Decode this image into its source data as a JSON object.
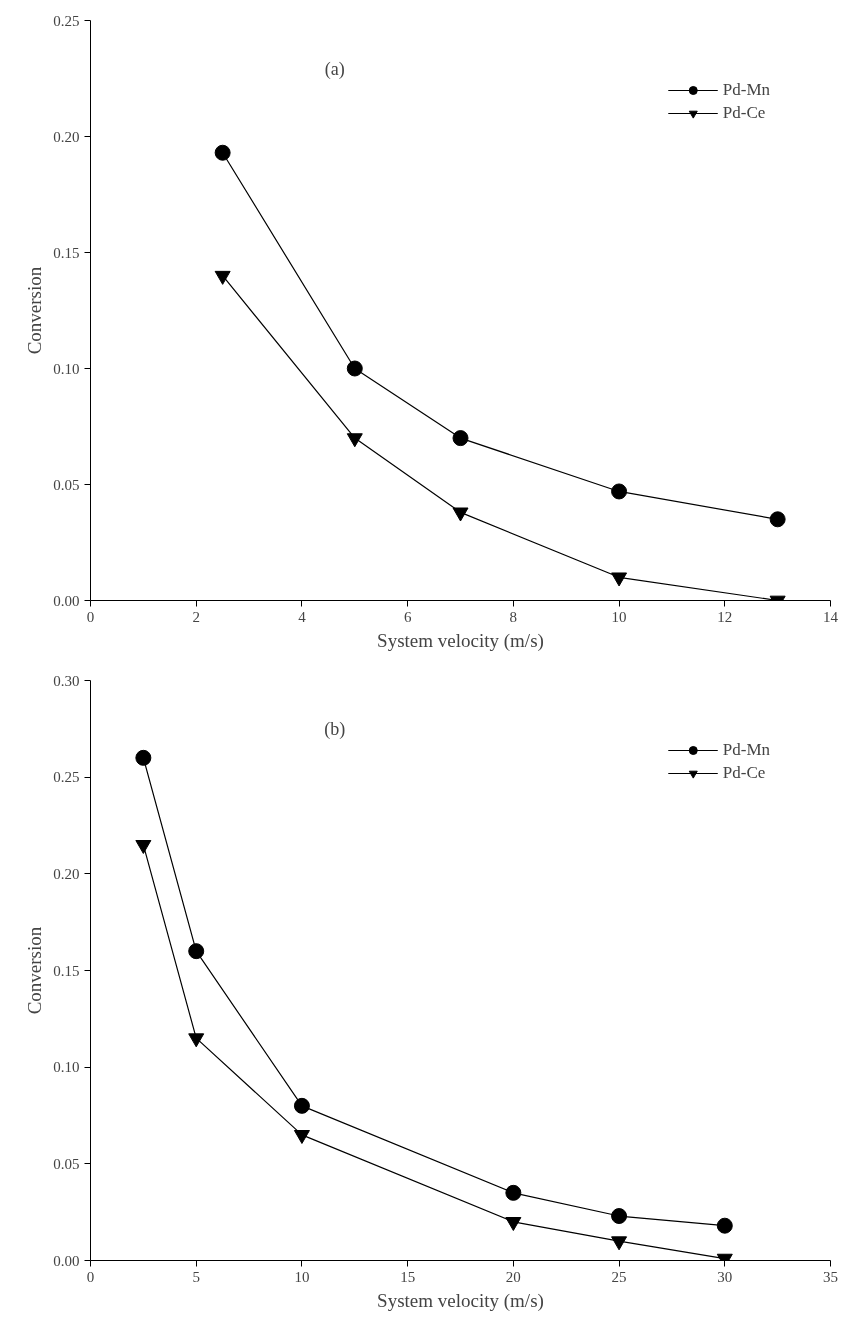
{
  "chart_data": [
    {
      "type": "line",
      "xlabel": "System velocity (m/s)",
      "ylabel": "Conversion",
      "annotations": [
        "(a)"
      ],
      "x": [
        2.5,
        5,
        7,
        10,
        13
      ],
      "series": [
        {
          "name": "Pd-Mn",
          "color": "#000000",
          "marker": "circle",
          "values": [
            0.193,
            0.1,
            0.07,
            0.047,
            0.035
          ]
        },
        {
          "name": "Pd-Ce",
          "color": "#000000",
          "marker": "triangle",
          "values": [
            0.14,
            0.07,
            0.038,
            0.01,
            0.0
          ]
        }
      ],
      "xlim": [
        0,
        14
      ],
      "xticks": [
        0,
        2,
        4,
        6,
        8,
        10,
        12,
        14
      ],
      "ylim": [
        0,
        0.25
      ],
      "yticks": [
        {
          "value": 0,
          "label": "0.00"
        },
        {
          "value": 0.05,
          "label": "0.05"
        },
        {
          "value": 0.1,
          "label": "0.10"
        },
        {
          "value": 0.15,
          "label": "0.15"
        },
        {
          "value": 0.2,
          "label": "0.20"
        },
        {
          "value": 0.25,
          "label": "0.25"
        }
      ],
      "legend": "top right",
      "grid": false,
      "line_style": "solid"
    },
    {
      "type": "line",
      "xlabel": "System velocity (m/s)",
      "ylabel": "Conversion",
      "annotations": [
        "(b)"
      ],
      "x": [
        2.5,
        5,
        10,
        20,
        25,
        30
      ],
      "series": [
        {
          "name": "Pd-Mn",
          "color": "#000000",
          "marker": "circle",
          "values": [
            0.26,
            0.16,
            0.08,
            0.035,
            0.023,
            0.018
          ]
        },
        {
          "name": "Pd-Ce",
          "color": "#000000",
          "marker": "triangle",
          "values": [
            0.215,
            0.115,
            0.065,
            0.02,
            0.01,
            0.001
          ]
        }
      ],
      "xlim": [
        0,
        35
      ],
      "xticks": [
        0,
        5,
        10,
        15,
        20,
        25,
        30,
        35
      ],
      "ylim": [
        0,
        0.3
      ],
      "yticks": [
        {
          "value": 0,
          "label": "0.00"
        },
        {
          "value": 0.05,
          "label": "0.05"
        },
        {
          "value": 0.1,
          "label": "0.10"
        },
        {
          "value": 0.15,
          "label": "0.15"
        },
        {
          "value": 0.2,
          "label": "0.20"
        },
        {
          "value": 0.25,
          "label": "0.25"
        },
        {
          "value": 0.3,
          "label": "0.30"
        }
      ],
      "legend": "top right",
      "grid": false,
      "line_style": "solid"
    }
  ]
}
